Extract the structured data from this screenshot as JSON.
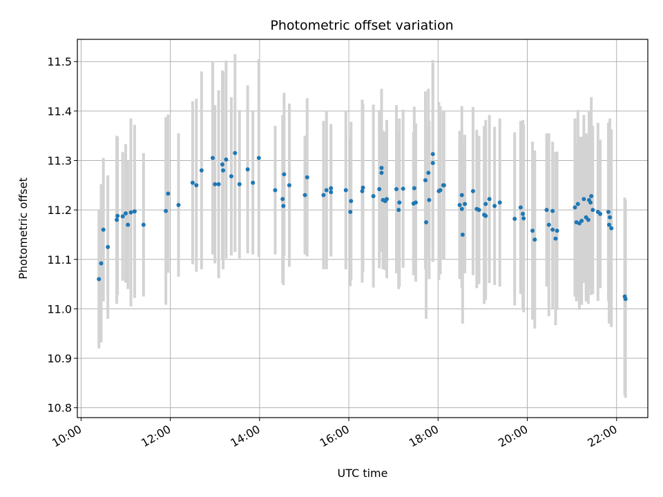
{
  "chart_data": {
    "type": "scatter",
    "title": "Photometric offset variation",
    "xlabel": "UTC time",
    "ylabel": "Photometric offset",
    "xlim": [
      "09:55",
      "22:42"
    ],
    "ylim": [
      10.78,
      11.545
    ],
    "x_ticks": [
      "10:00",
      "12:00",
      "14:00",
      "16:00",
      "18:00",
      "20:00",
      "22:00"
    ],
    "y_ticks": [
      "10.8",
      "10.9",
      "11.0",
      "11.1",
      "11.2",
      "11.3",
      "11.4",
      "11.5"
    ],
    "grid": true,
    "colors": {
      "point": "#1f77b4",
      "errorbar": "#d3d3d3",
      "grid": "#b0b0b0"
    },
    "points": [
      {
        "t": "10:24",
        "y": 11.06,
        "err": 0.14
      },
      {
        "t": "10:27",
        "y": 11.092,
        "err": 0.16
      },
      {
        "t": "10:30",
        "y": 11.16,
        "err": 0.145
      },
      {
        "t": "10:36",
        "y": 11.125,
        "err": 0.145
      },
      {
        "t": "10:48",
        "y": 11.18,
        "err": 0.17
      },
      {
        "t": "10:49",
        "y": 11.188,
        "err": 0.16
      },
      {
        "t": "10:56",
        "y": 11.187,
        "err": 0.13
      },
      {
        "t": "11:00",
        "y": 11.193,
        "err": 0.14
      },
      {
        "t": "11:03",
        "y": 11.17,
        "err": 0.13
      },
      {
        "t": "11:07",
        "y": 11.195,
        "err": 0.19
      },
      {
        "t": "11:12",
        "y": 11.197,
        "err": 0.175
      },
      {
        "t": "11:24",
        "y": 11.17,
        "err": 0.145
      },
      {
        "t": "11:54",
        "y": 11.198,
        "err": 0.19
      },
      {
        "t": "11:57",
        "y": 11.233,
        "err": 0.16
      },
      {
        "t": "12:11",
        "y": 11.21,
        "err": 0.145
      },
      {
        "t": "12:30",
        "y": 11.255,
        "err": 0.165
      },
      {
        "t": "12:35",
        "y": 11.25,
        "err": 0.175
      },
      {
        "t": "12:42",
        "y": 11.28,
        "err": 0.2
      },
      {
        "t": "12:57",
        "y": 11.305,
        "err": 0.195
      },
      {
        "t": "13:00",
        "y": 11.252,
        "err": 0.16
      },
      {
        "t": "13:05",
        "y": 11.252,
        "err": 0.19
      },
      {
        "t": "13:10",
        "y": 11.292,
        "err": 0.19
      },
      {
        "t": "13:11",
        "y": 11.28,
        "err": 0.2
      },
      {
        "t": "13:15",
        "y": 11.302,
        "err": 0.2
      },
      {
        "t": "13:22",
        "y": 11.268,
        "err": 0.16
      },
      {
        "t": "13:27",
        "y": 11.315,
        "err": 0.2
      },
      {
        "t": "13:33",
        "y": 11.252,
        "err": 0.15
      },
      {
        "t": "13:44",
        "y": 11.282,
        "err": 0.17
      },
      {
        "t": "13:51",
        "y": 11.255,
        "err": 0.145
      },
      {
        "t": "13:59",
        "y": 11.305,
        "err": 0.2
      },
      {
        "t": "14:21",
        "y": 11.24,
        "err": 0.13
      },
      {
        "t": "14:31",
        "y": 11.222,
        "err": 0.17
      },
      {
        "t": "14:32",
        "y": 11.208,
        "err": 0.16
      },
      {
        "t": "14:33",
        "y": 11.272,
        "err": 0.165
      },
      {
        "t": "14:40",
        "y": 11.25,
        "err": 0.165
      },
      {
        "t": "15:01",
        "y": 11.23,
        "err": 0.12
      },
      {
        "t": "15:04",
        "y": 11.266,
        "err": 0.16
      },
      {
        "t": "15:26",
        "y": 11.23,
        "err": 0.15
      },
      {
        "t": "15:30",
        "y": 11.24,
        "err": 0.16
      },
      {
        "t": "15:36",
        "y": 11.244,
        "err": 0.13
      },
      {
        "t": "15:36",
        "y": 11.236,
        "err": 0.13
      },
      {
        "t": "15:56",
        "y": 11.24,
        "err": 0.16
      },
      {
        "t": "16:02",
        "y": 11.196,
        "err": 0.15
      },
      {
        "t": "16:03",
        "y": 11.218,
        "err": 0.16
      },
      {
        "t": "16:18",
        "y": 11.238,
        "err": 0.185
      },
      {
        "t": "16:19",
        "y": 11.245,
        "err": 0.17
      },
      {
        "t": "16:33",
        "y": 11.228,
        "err": 0.185
      },
      {
        "t": "16:41",
        "y": 11.242,
        "err": 0.16
      },
      {
        "t": "16:44",
        "y": 11.275,
        "err": 0.16
      },
      {
        "t": "16:44",
        "y": 11.285,
        "err": 0.16
      },
      {
        "t": "16:46",
        "y": 11.22,
        "err": 0.14
      },
      {
        "t": "16:49",
        "y": 11.218,
        "err": 0.14
      },
      {
        "t": "16:51",
        "y": 11.222,
        "err": 0.16
      },
      {
        "t": "17:04",
        "y": 11.242,
        "err": 0.17
      },
      {
        "t": "17:07",
        "y": 11.2,
        "err": 0.16
      },
      {
        "t": "17:08",
        "y": 11.215,
        "err": 0.17
      },
      {
        "t": "17:13",
        "y": 11.243,
        "err": 0.16
      },
      {
        "t": "17:27",
        "y": 11.213,
        "err": 0.145
      },
      {
        "t": "17:30",
        "y": 11.215,
        "err": 0.16
      },
      {
        "t": "17:28",
        "y": 11.244,
        "err": 0.165
      },
      {
        "t": "17:43",
        "y": 11.26,
        "err": 0.18
      },
      {
        "t": "17:44",
        "y": 11.175,
        "err": 0.195
      },
      {
        "t": "17:47",
        "y": 11.275,
        "err": 0.17
      },
      {
        "t": "17:48",
        "y": 11.22,
        "err": 0.16
      },
      {
        "t": "17:53",
        "y": 11.295,
        "err": 0.2
      },
      {
        "t": "17:53",
        "y": 11.313,
        "err": 0.19
      },
      {
        "t": "18:01",
        "y": 11.238,
        "err": 0.18
      },
      {
        "t": "18:03",
        "y": 11.24,
        "err": 0.17
      },
      {
        "t": "18:07",
        "y": 11.25,
        "err": 0.15
      },
      {
        "t": "18:08",
        "y": 11.25,
        "err": 0.15
      },
      {
        "t": "18:29",
        "y": 11.21,
        "err": 0.15
      },
      {
        "t": "18:32",
        "y": 11.202,
        "err": 0.16
      },
      {
        "t": "18:32",
        "y": 11.23,
        "err": 0.18
      },
      {
        "t": "18:33",
        "y": 11.15,
        "err": 0.18
      },
      {
        "t": "18:36",
        "y": 11.212,
        "err": 0.14
      },
      {
        "t": "18:47",
        "y": 11.238,
        "err": 0.17
      },
      {
        "t": "18:52",
        "y": 11.202,
        "err": 0.16
      },
      {
        "t": "18:55",
        "y": 11.2,
        "err": 0.15
      },
      {
        "t": "19:02",
        "y": 11.19,
        "err": 0.18
      },
      {
        "t": "19:04",
        "y": 11.188,
        "err": 0.17
      },
      {
        "t": "19:04",
        "y": 11.212,
        "err": 0.17
      },
      {
        "t": "19:09",
        "y": 11.222,
        "err": 0.17
      },
      {
        "t": "19:16",
        "y": 11.208,
        "err": 0.16
      },
      {
        "t": "19:23",
        "y": 11.215,
        "err": 0.17
      },
      {
        "t": "19:43",
        "y": 11.182,
        "err": 0.175
      },
      {
        "t": "19:51",
        "y": 11.205,
        "err": 0.175
      },
      {
        "t": "19:54",
        "y": 11.192,
        "err": 0.19
      },
      {
        "t": "19:55",
        "y": 11.183,
        "err": 0.19
      },
      {
        "t": "20:07",
        "y": 11.158,
        "err": 0.18
      },
      {
        "t": "20:10",
        "y": 11.14,
        "err": 0.18
      },
      {
        "t": "20:26",
        "y": 11.2,
        "err": 0.155
      },
      {
        "t": "20:29",
        "y": 11.17,
        "err": 0.185
      },
      {
        "t": "20:34",
        "y": 11.198,
        "err": 0.14
      },
      {
        "t": "20:34",
        "y": 11.16,
        "err": 0.16
      },
      {
        "t": "20:38",
        "y": 11.142,
        "err": 0.175
      },
      {
        "t": "20:40",
        "y": 11.158,
        "err": 0.16
      },
      {
        "t": "21:04",
        "y": 11.205,
        "err": 0.18
      },
      {
        "t": "21:06",
        "y": 11.175,
        "err": 0.16
      },
      {
        "t": "21:08",
        "y": 11.212,
        "err": 0.19
      },
      {
        "t": "21:10",
        "y": 11.173,
        "err": 0.175
      },
      {
        "t": "21:13",
        "y": 11.178,
        "err": 0.17
      },
      {
        "t": "21:16",
        "y": 11.222,
        "err": 0.17
      },
      {
        "t": "21:19",
        "y": 11.185,
        "err": 0.17
      },
      {
        "t": "21:22",
        "y": 11.18,
        "err": 0.17
      },
      {
        "t": "21:23",
        "y": 11.22,
        "err": 0.18
      },
      {
        "t": "21:25",
        "y": 11.215,
        "err": 0.175
      },
      {
        "t": "21:26",
        "y": 11.228,
        "err": 0.2
      },
      {
        "t": "21:28",
        "y": 11.2,
        "err": 0.17
      },
      {
        "t": "21:35",
        "y": 11.196,
        "err": 0.18
      },
      {
        "t": "21:38",
        "y": 11.192,
        "err": 0.15
      },
      {
        "t": "21:49",
        "y": 11.196,
        "err": 0.18
      },
      {
        "t": "21:50",
        "y": 11.17,
        "err": 0.2
      },
      {
        "t": "21:51",
        "y": 11.185,
        "err": 0.2
      },
      {
        "t": "21:53",
        "y": 11.163,
        "err": 0.2
      },
      {
        "t": "22:11",
        "y": 11.025,
        "err": 0.2
      },
      {
        "t": "22:12",
        "y": 11.02,
        "err": 0.2
      }
    ]
  }
}
